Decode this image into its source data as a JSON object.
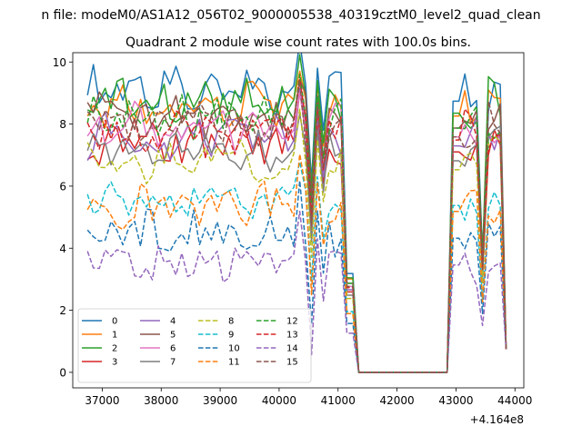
{
  "figure": {
    "suptitle": "n file: modeM0/AS1A12_056T02_9000005538_40319cztM0_level2_quad_clean"
  },
  "chart_data": {
    "type": "line",
    "title": "Quadrant 2 module wise count rates with 100.0s bins.",
    "xlabel": "",
    "ylabel": "",
    "x_offset_label": "+4.164e8",
    "xlim": [
      36500,
      44150
    ],
    "ylim": [
      -0.5,
      10.3
    ],
    "xticks": [
      37000,
      38000,
      39000,
      40000,
      41000,
      42000,
      43000,
      44000
    ],
    "yticks": [
      0,
      2,
      4,
      6,
      8,
      10
    ],
    "grid": false,
    "legend_placement": "lower-left",
    "legend_columns": 4,
    "series": [
      {
        "name": "0",
        "color": "#1f77b4",
        "dash": "solid",
        "base": 9.1
      },
      {
        "name": "1",
        "color": "#ff7f0e",
        "dash": "solid",
        "base": 8.6
      },
      {
        "name": "2",
        "color": "#2ca02c",
        "dash": "solid",
        "base": 8.7
      },
      {
        "name": "3",
        "color": "#d62728",
        "dash": "solid",
        "base": 7.4
      },
      {
        "name": "4",
        "color": "#9467bd",
        "dash": "solid",
        "base": 7.6
      },
      {
        "name": "5",
        "color": "#8c564b",
        "dash": "solid",
        "base": 8.2
      },
      {
        "name": "6",
        "color": "#e377c2",
        "dash": "solid",
        "base": 7.9
      },
      {
        "name": "7",
        "color": "#7f7f7f",
        "dash": "solid",
        "base": 7.1
      },
      {
        "name": "8",
        "color": "#bcbd22",
        "dash": "dashed",
        "base": 6.8
      },
      {
        "name": "9",
        "color": "#17becf",
        "dash": "dashed",
        "base": 5.6
      },
      {
        "name": "10",
        "color": "#1f77b4",
        "dash": "dashed",
        "base": 4.5
      },
      {
        "name": "11",
        "color": "#ff7f0e",
        "dash": "dashed",
        "base": 5.4
      },
      {
        "name": "12",
        "color": "#2ca02c",
        "dash": "dashed",
        "base": 8.2
      },
      {
        "name": "13",
        "color": "#d62728",
        "dash": "dashed",
        "base": 7.8
      },
      {
        "name": "14",
        "color": "#9467bd",
        "dash": "dashed",
        "base": 3.6
      },
      {
        "name": "15",
        "color": "#8c564b",
        "dash": "dashed",
        "base": 7.9
      }
    ]
  }
}
